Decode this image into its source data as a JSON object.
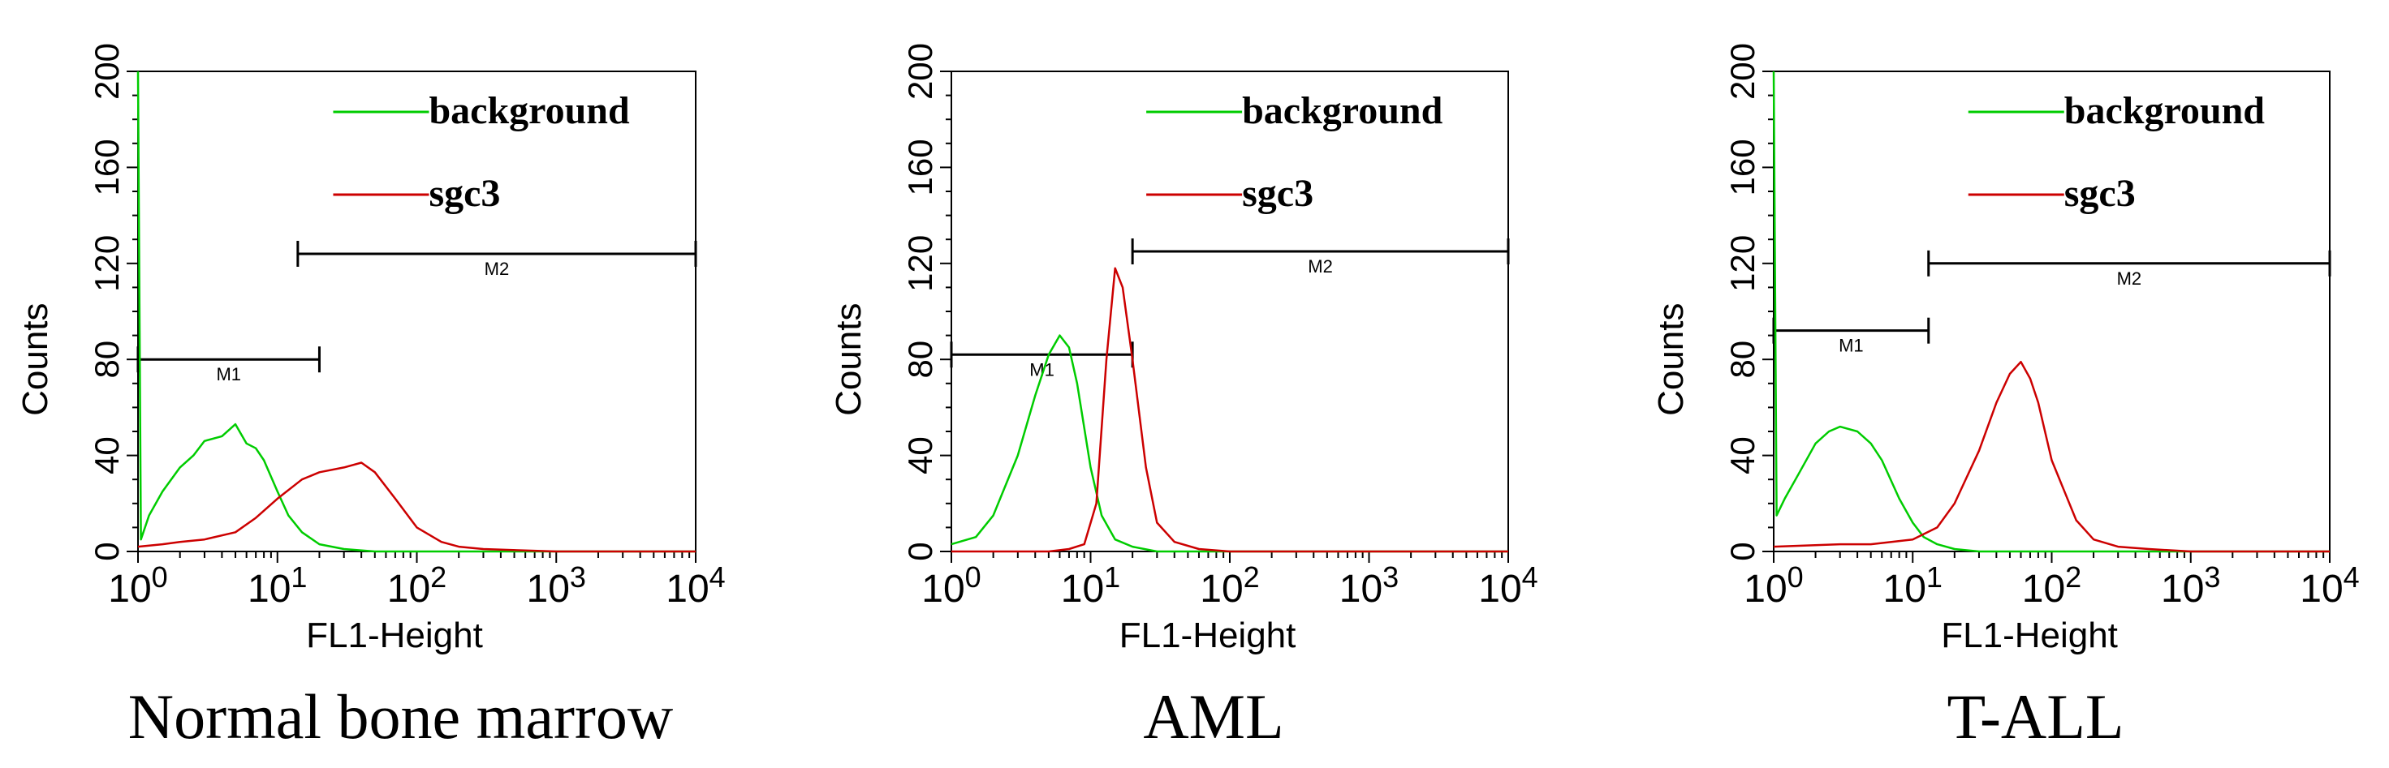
{
  "figure": {
    "x_axis_label": "FL1-Height",
    "y_axis_label": "Counts",
    "x_tick_base": "10",
    "x_tick_exponents": [
      "0",
      "1",
      "2",
      "3",
      "4"
    ],
    "y_ticks": [
      "0",
      "40",
      "80",
      "120",
      "160",
      "200"
    ],
    "legend": [
      {
        "label": "background",
        "color": "#00cc00"
      },
      {
        "label": "sgc3",
        "color": "#cc0000"
      }
    ],
    "colors": {
      "background": "#00cc00",
      "sgc3": "#cc0000",
      "axes": "#000000"
    }
  },
  "chart_data": [
    {
      "type": "line",
      "title": "Normal bone marrow",
      "xlabel": "FL1-Height",
      "ylabel": "Counts",
      "xscale": "log",
      "xlim": [
        1,
        10000
      ],
      "ylim": [
        0,
        200
      ],
      "legend_position": "top-right",
      "gates": [
        {
          "name": "M1",
          "x_start": 1,
          "x_end": 20,
          "y_level": 80
        },
        {
          "name": "M2",
          "x_start": 14,
          "x_end": 10000,
          "y_level": 124
        }
      ],
      "series": [
        {
          "name": "background",
          "color": "#00cc00",
          "x": [
            1,
            1.05,
            1.2,
            1.5,
            2,
            2.5,
            3,
            4,
            5,
            6,
            7,
            8,
            10,
            12,
            15,
            20,
            30,
            50,
            100,
            1000,
            10000
          ],
          "y": [
            200,
            5,
            15,
            25,
            35,
            40,
            46,
            48,
            53,
            45,
            43,
            38,
            25,
            15,
            8,
            3,
            1,
            0,
            0,
            0,
            0
          ]
        },
        {
          "name": "sgc3",
          "color": "#cc0000",
          "x": [
            1,
            1.5,
            2,
            3,
            5,
            7,
            10,
            15,
            20,
            30,
            40,
            50,
            70,
            100,
            150,
            200,
            300,
            1000,
            10000
          ],
          "y": [
            2,
            3,
            4,
            5,
            8,
            14,
            22,
            30,
            33,
            35,
            37,
            33,
            22,
            10,
            4,
            2,
            1,
            0,
            0
          ]
        }
      ]
    },
    {
      "type": "line",
      "title": "AML",
      "xlabel": "FL1-Height",
      "ylabel": "Counts",
      "xscale": "log",
      "xlim": [
        1,
        10000
      ],
      "ylim": [
        0,
        200
      ],
      "legend_position": "top-right",
      "gates": [
        {
          "name": "M1",
          "x_start": 1,
          "x_end": 20,
          "y_level": 82
        },
        {
          "name": "M2",
          "x_start": 20,
          "x_end": 10000,
          "y_level": 125
        }
      ],
      "series": [
        {
          "name": "background",
          "color": "#00cc00",
          "x": [
            1,
            1.5,
            2,
            3,
            4,
            5,
            6,
            7,
            8,
            10,
            12,
            15,
            20,
            30,
            100,
            10000
          ],
          "y": [
            3,
            6,
            15,
            40,
            65,
            82,
            90,
            85,
            70,
            35,
            15,
            5,
            2,
            0,
            0,
            0
          ]
        },
        {
          "name": "sgc3",
          "color": "#cc0000",
          "x": [
            1,
            5,
            7,
            9,
            11,
            13,
            15,
            17,
            20,
            25,
            30,
            40,
            60,
            100,
            10000
          ],
          "y": [
            0,
            0,
            1,
            3,
            20,
            80,
            118,
            110,
            80,
            35,
            12,
            4,
            1,
            0,
            0
          ]
        }
      ]
    },
    {
      "type": "line",
      "title": "T-ALL",
      "xlabel": "FL1-Height",
      "ylabel": "Counts",
      "xscale": "log",
      "xlim": [
        1,
        10000
      ],
      "ylim": [
        0,
        200
      ],
      "legend_position": "top-right",
      "gates": [
        {
          "name": "M1",
          "x_start": 1,
          "x_end": 13,
          "y_level": 92
        },
        {
          "name": "M2",
          "x_start": 13,
          "x_end": 10000,
          "y_level": 120
        }
      ],
      "series": [
        {
          "name": "background",
          "color": "#00cc00",
          "x": [
            1,
            1.05,
            1.2,
            1.5,
            2,
            2.5,
            3,
            4,
            5,
            6,
            8,
            10,
            12,
            15,
            20,
            30,
            100,
            10000
          ],
          "y": [
            200,
            15,
            22,
            32,
            45,
            50,
            52,
            50,
            45,
            38,
            22,
            12,
            6,
            3,
            1,
            0,
            0,
            0
          ]
        },
        {
          "name": "sgc3",
          "color": "#cc0000",
          "x": [
            1,
            3,
            5,
            10,
            15,
            20,
            30,
            40,
            50,
            60,
            70,
            80,
            100,
            150,
            200,
            300,
            500,
            1000,
            10000
          ],
          "y": [
            2,
            3,
            3,
            5,
            10,
            20,
            42,
            62,
            74,
            79,
            72,
            62,
            38,
            13,
            5,
            2,
            1,
            0,
            0
          ]
        }
      ]
    }
  ]
}
